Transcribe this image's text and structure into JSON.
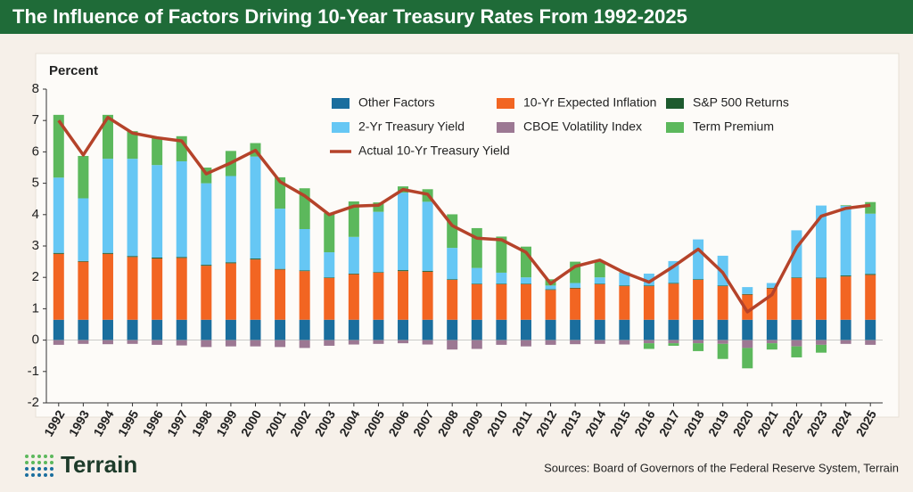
{
  "chart_data": {
    "type": "stacked-bar",
    "title": "The Influence of Factors Driving 10-Year Treasury Rates From 1992-2025",
    "y_label": "Percent",
    "source": "Sources: Board of Governors of the Federal Reserve System, Terrain",
    "logo_text": "Terrain",
    "legend": "top",
    "categories": [
      "1992",
      "1993",
      "1994",
      "1995",
      "1996",
      "1997",
      "1998",
      "1999",
      "2000",
      "2001",
      "2002",
      "2003",
      "2004",
      "2005",
      "2006",
      "2007",
      "2008",
      "2009",
      "2010",
      "2011",
      "2012",
      "2013",
      "2014",
      "2015",
      "2016",
      "2017",
      "2018",
      "2019",
      "2020",
      "2021",
      "2022",
      "2023",
      "2024",
      "2025"
    ],
    "ylim": [
      -2,
      8
    ],
    "yticks": [
      -2,
      -1,
      0,
      1,
      2,
      3,
      4,
      5,
      6,
      7,
      8
    ],
    "series": [
      {
        "name": "Other Factors",
        "type": "bar",
        "color": "#1a6e9e",
        "values": [
          0.65,
          0.65,
          0.65,
          0.65,
          0.65,
          0.65,
          0.65,
          0.65,
          0.65,
          0.65,
          0.65,
          0.65,
          0.65,
          0.65,
          0.65,
          0.65,
          0.65,
          0.65,
          0.65,
          0.65,
          0.65,
          0.65,
          0.65,
          0.65,
          0.65,
          0.65,
          0.65,
          0.65,
          0.65,
          0.65,
          0.65,
          0.65,
          0.65,
          0.65
        ]
      },
      {
        "name": "10-Yr Expected Inflation",
        "type": "bar",
        "color": "#f26522",
        "values": [
          2.1,
          1.85,
          2.1,
          2.0,
          1.95,
          1.97,
          1.72,
          1.8,
          1.92,
          1.6,
          1.55,
          1.33,
          1.45,
          1.5,
          1.55,
          1.53,
          1.27,
          1.13,
          1.13,
          1.13,
          0.95,
          1.0,
          1.13,
          1.07,
          1.07,
          1.15,
          1.27,
          1.07,
          0.8,
          1.0,
          1.33,
          1.32,
          1.38,
          1.43
        ]
      },
      {
        "name": "S&P 500 Returns",
        "type": "bar",
        "color": "#1d5a2e",
        "values": [
          0.03,
          0.02,
          0.03,
          0.03,
          0.03,
          0.03,
          0.03,
          0.03,
          0.03,
          0.02,
          0.02,
          0.02,
          0.02,
          0.02,
          0.03,
          0.03,
          0.02,
          0.02,
          0.02,
          0.02,
          0.02,
          0.02,
          0.02,
          0.02,
          0.02,
          0.02,
          0.02,
          0.02,
          0.02,
          0.02,
          0.02,
          0.02,
          0.03,
          0.03
        ]
      },
      {
        "name": "2-Yr Treasury Yield",
        "type": "bar",
        "color": "#66c7f4",
        "values": [
          2.4,
          2.0,
          3.0,
          3.1,
          2.95,
          3.05,
          2.6,
          2.75,
          3.25,
          1.92,
          1.32,
          0.8,
          1.17,
          1.92,
          2.47,
          2.2,
          1.0,
          0.5,
          0.35,
          0.2,
          0.12,
          0.15,
          0.2,
          0.4,
          0.38,
          0.7,
          1.27,
          0.95,
          0.22,
          0.15,
          1.5,
          2.3,
          2.22,
          1.92
        ]
      },
      {
        "name": "CBOE Volatility Index",
        "type": "bar",
        "color": "#9c7893",
        "values": [
          -0.15,
          -0.12,
          -0.13,
          -0.12,
          -0.15,
          -0.17,
          -0.22,
          -0.2,
          -0.2,
          -0.22,
          -0.25,
          -0.18,
          -0.14,
          -0.12,
          -0.1,
          -0.14,
          -0.3,
          -0.28,
          -0.15,
          -0.2,
          -0.15,
          -0.13,
          -0.12,
          -0.14,
          -0.1,
          -0.1,
          -0.1,
          -0.12,
          -0.25,
          -0.1,
          -0.2,
          -0.15,
          -0.12,
          -0.15
        ]
      },
      {
        "name": "Term Premium",
        "type": "bar",
        "color": "#5cb85c",
        "values": [
          2.0,
          1.35,
          1.4,
          0.88,
          0.9,
          0.8,
          0.5,
          0.8,
          0.43,
          1.0,
          1.3,
          1.25,
          1.13,
          0.3,
          0.2,
          0.4,
          1.07,
          1.27,
          1.15,
          0.98,
          0.2,
          0.68,
          0.5,
          0.02,
          -0.18,
          -0.08,
          -0.25,
          -0.48,
          -0.65,
          -0.2,
          -0.35,
          -0.25,
          0.02,
          0.37
        ]
      },
      {
        "name": "Actual 10-Yr Treasury Yield",
        "type": "line",
        "color": "#b5432a",
        "values": [
          7.0,
          5.9,
          7.1,
          6.6,
          6.45,
          6.35,
          5.3,
          5.65,
          6.05,
          5.05,
          4.6,
          4.0,
          4.27,
          4.3,
          4.8,
          4.65,
          3.65,
          3.25,
          3.2,
          2.8,
          1.8,
          2.35,
          2.55,
          2.15,
          1.85,
          2.35,
          2.9,
          2.15,
          0.9,
          1.45,
          2.95,
          3.95,
          4.2,
          4.3
        ]
      }
    ]
  }
}
